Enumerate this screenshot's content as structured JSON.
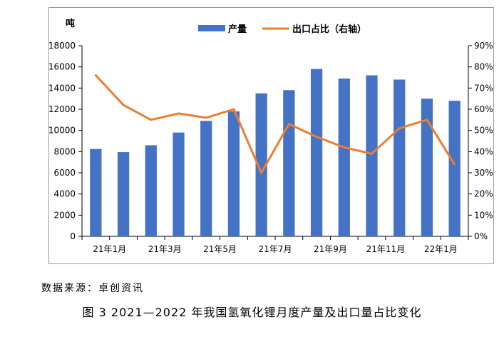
{
  "source_note": "数据来源：卓创资讯",
  "caption": "图 3  2021—2022 年我国氢氧化锂月度产量及出口量占比变化",
  "chart_data": {
    "type": "bar",
    "left_unit_label": "吨",
    "x_tick_labels": [
      "21年1月",
      "21年3月",
      "21年5月",
      "21年7月",
      "21年9月",
      "21年11月",
      "22年1月"
    ],
    "categories": [
      "21年1月",
      "21年2月",
      "21年3月",
      "21年4月",
      "21年5月",
      "21年6月",
      "21年7月",
      "21年8月",
      "21年9月",
      "21年10月",
      "21年11月",
      "21年12月",
      "22年1月",
      "22年2月"
    ],
    "y_ticks": [
      "0",
      "2000",
      "4000",
      "6000",
      "8000",
      "10000",
      "12000",
      "14000",
      "16000",
      "18000"
    ],
    "y2_ticks": [
      "0%",
      "10%",
      "20%",
      "30%",
      "40%",
      "50%",
      "60%",
      "70%",
      "80%",
      "90%"
    ],
    "ylim": [
      0,
      18000
    ],
    "y2lim": [
      0,
      0.9
    ],
    "grid": false,
    "legend_position": "top",
    "series": [
      {
        "name": "产量",
        "type": "bar",
        "axis": "left",
        "color": "#4472C4",
        "values": [
          8250,
          7950,
          8600,
          9800,
          10900,
          11800,
          13500,
          13800,
          15800,
          14900,
          15200,
          14800,
          13000,
          12800
        ]
      },
      {
        "name": "出口占比（右轴）",
        "type": "line",
        "axis": "right",
        "color": "#ED7D31",
        "values": [
          0.76,
          0.62,
          0.55,
          0.58,
          0.56,
          0.6,
          0.3,
          0.53,
          0.47,
          0.42,
          0.39,
          0.51,
          0.55,
          0.34
        ]
      }
    ]
  }
}
